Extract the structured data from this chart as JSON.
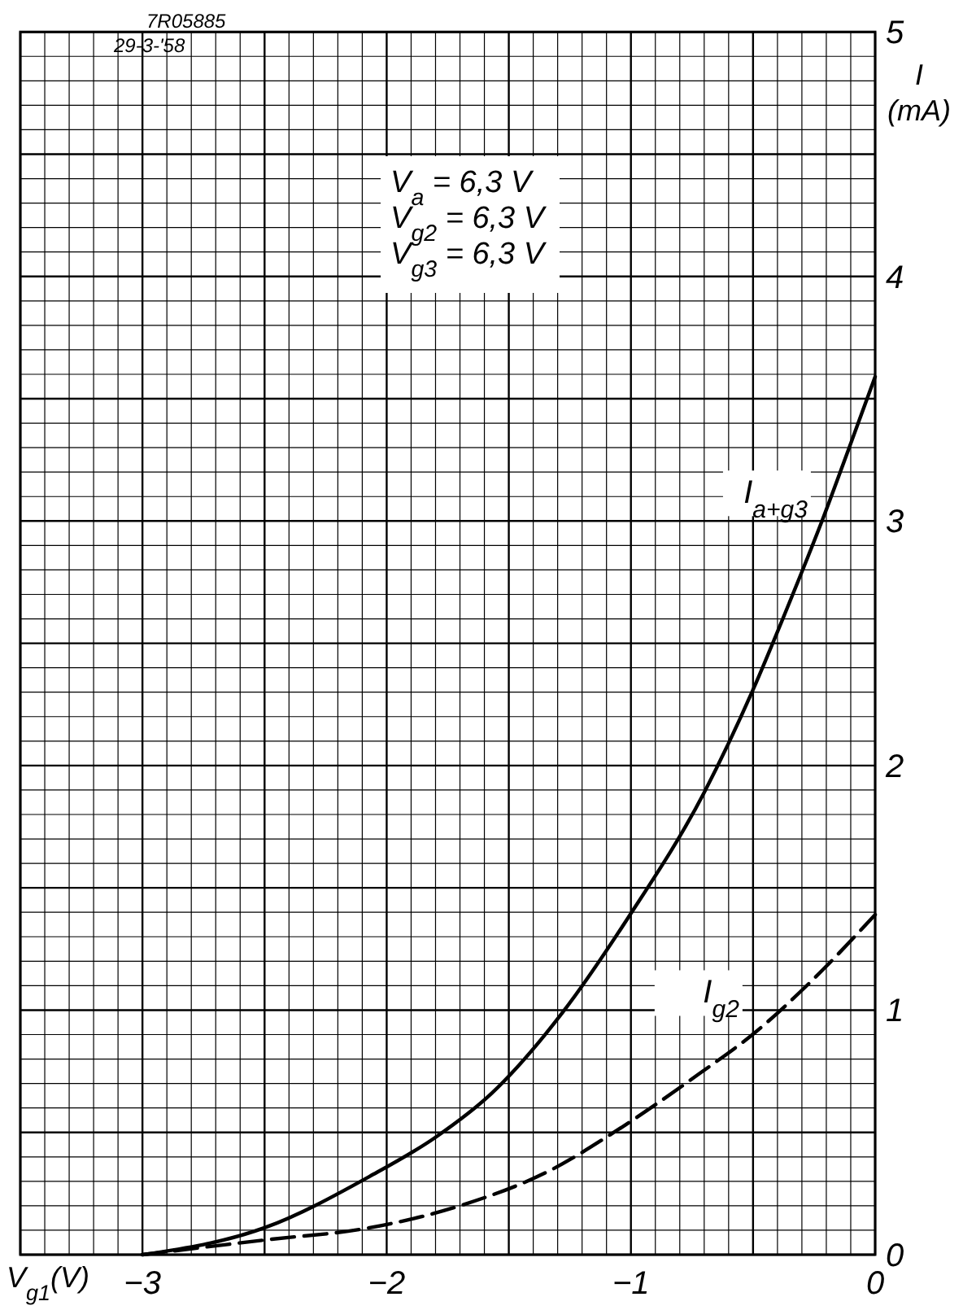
{
  "chart_data": {
    "type": "line",
    "xlabel": "V$_{g1}$(V)",
    "ylabel": "I (mA)",
    "xlim": [
      -3.5,
      0
    ],
    "ylim": [
      0,
      5
    ],
    "xticks": [
      {
        "value": -3.5,
        "label": null
      },
      {
        "value": -3.4,
        "label": null
      },
      {
        "value": -3.3,
        "label": null
      },
      {
        "value": -3.2,
        "label": null
      },
      {
        "value": -3.1,
        "label": null
      },
      {
        "value": -3,
        "label": "−3"
      },
      {
        "value": -2.9,
        "label": null
      },
      {
        "value": -2.8,
        "label": null
      },
      {
        "value": -2.7,
        "label": null
      },
      {
        "value": -2.6,
        "label": null
      },
      {
        "value": -2.5,
        "label": null
      },
      {
        "value": -2.4,
        "label": null
      },
      {
        "value": -2.3,
        "label": null
      },
      {
        "value": -2.2,
        "label": null
      },
      {
        "value": -2.1,
        "label": null
      },
      {
        "value": -2,
        "label": "−2"
      },
      {
        "value": -1.9,
        "label": null
      },
      {
        "value": -1.8,
        "label": null
      },
      {
        "value": -1.7,
        "label": null
      },
      {
        "value": -1.6,
        "label": null
      },
      {
        "value": -1.5,
        "label": null
      },
      {
        "value": -1.4,
        "label": null
      },
      {
        "value": -1.3,
        "label": null
      },
      {
        "value": -1.2,
        "label": null
      },
      {
        "value": -1.1,
        "label": null
      },
      {
        "value": -1,
        "label": "−1"
      },
      {
        "value": -0.9,
        "label": null
      },
      {
        "value": -0.8,
        "label": null
      },
      {
        "value": -0.7,
        "label": null
      },
      {
        "value": -0.6,
        "label": null
      },
      {
        "value": -0.5,
        "label": null
      },
      {
        "value": -0.4,
        "label": null
      },
      {
        "value": -0.3,
        "label": null
      },
      {
        "value": -0.2,
        "label": null
      },
      {
        "value": -0.1,
        "label": null
      },
      0
    ],
    "yticks": [
      0,
      {
        "value": 0.1,
        "label": null
      },
      {
        "value": 0.2,
        "label": null
      },
      {
        "value": 0.3,
        "label": null
      },
      {
        "value": 0.4,
        "label": null
      },
      {
        "value": 0.5,
        "label": null
      },
      {
        "value": 0.6,
        "label": null
      },
      {
        "value": 0.7,
        "label": null
      },
      {
        "value": 0.8,
        "label": null
      },
      {
        "value": 0.9,
        "label": null
      },
      1,
      {
        "value": 1.1,
        "label": null
      },
      {
        "value": 1.2,
        "label": null
      },
      {
        "value": 1.3,
        "label": null
      },
      {
        "value": 1.4,
        "label": null
      },
      {
        "value": 1.5,
        "label": null
      },
      {
        "value": 1.6,
        "label": null
      },
      {
        "value": 1.7,
        "label": null
      },
      {
        "value": 1.8,
        "label": null
      },
      {
        "value": 1.9,
        "label": null
      },
      2,
      {
        "value": 2.1,
        "label": null
      },
      {
        "value": 2.2,
        "label": null
      },
      {
        "value": 2.3,
        "label": null
      },
      {
        "value": 2.4,
        "label": null
      },
      {
        "value": 2.5,
        "label": null
      },
      {
        "value": 2.6,
        "label": null
      },
      {
        "value": 2.7,
        "label": null
      },
      {
        "value": 2.8,
        "label": null
      },
      {
        "value": 2.9,
        "label": null
      },
      3,
      {
        "value": 3.1,
        "label": null
      },
      {
        "value": 3.2,
        "label": null
      },
      {
        "value": 3.3,
        "label": null
      },
      {
        "value": 3.4,
        "label": null
      },
      {
        "value": 3.5,
        "label": null
      },
      {
        "value": 3.6,
        "label": null
      },
      {
        "value": 3.7,
        "label": null
      },
      {
        "value": 3.8,
        "label": null
      },
      {
        "value": 3.9,
        "label": null
      },
      4,
      {
        "value": 4.1,
        "label": null
      },
      {
        "value": 4.2,
        "label": null
      },
      {
        "value": 4.3,
        "label": null
      },
      {
        "value": 4.4,
        "label": null
      },
      {
        "value": 4.5,
        "label": null
      },
      {
        "value": 4.6,
        "label": null
      },
      {
        "value": 4.7,
        "label": null
      },
      {
        "value": 4.8,
        "label": null
      },
      {
        "value": 4.9,
        "label": null
      },
      5
    ],
    "grid": true,
    "marker": "none",
    "annotations": [
      "7R05885",
      "29-3-'58",
      "V$_{a}$ = 6,3 V",
      "V$_{g2}$ = 6,3 V",
      "V$_{g3}$ = 6,3 V"
    ],
    "series": [
      {
        "name": "I$_{a+g3}$",
        "color": "#000000",
        "line_style": "solid",
        "x": [
          -3.0,
          -2.5,
          -2.07,
          -1.8,
          -1.57,
          -1.28,
          -1.01,
          -0.7,
          -0.5,
          -0.37,
          -0.21,
          -0.11,
          0
        ],
        "values": [
          0,
          0.11,
          0.32,
          0.48,
          0.66,
          0.99,
          1.38,
          1.89,
          2.31,
          2.62,
          3.02,
          3.29,
          3.59
        ]
      },
      {
        "name": "I$_{g2}$",
        "color": "#000000",
        "line_style": "dashed",
        "x": [
          -3.0,
          -2.5,
          -2.07,
          -1.7,
          -1.32,
          -1.07,
          -0.72,
          -0.49,
          -0.27,
          0
        ],
        "values": [
          0,
          0.06,
          0.11,
          0.2,
          0.35,
          0.5,
          0.74,
          0.91,
          1.11,
          1.39
        ]
      }
    ]
  }
}
